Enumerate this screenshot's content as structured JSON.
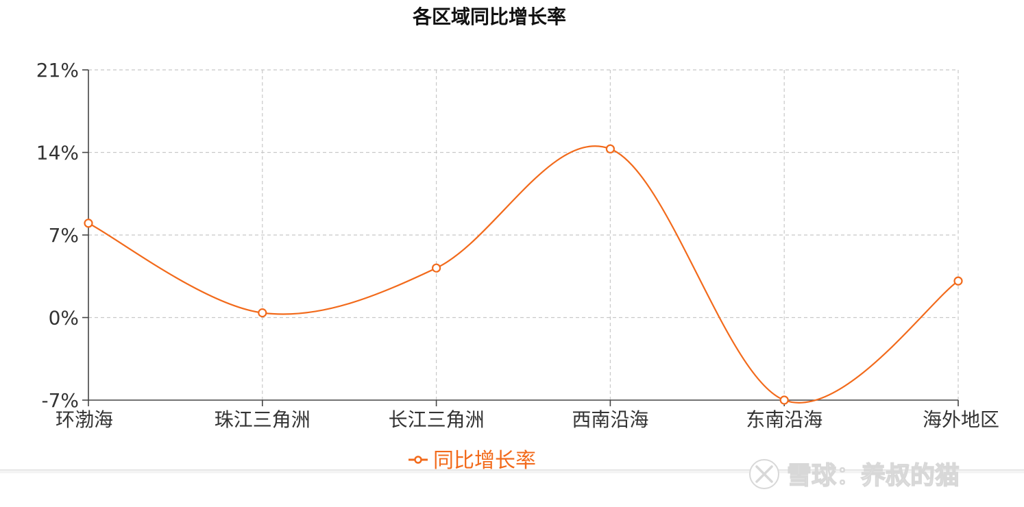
{
  "chart_data": {
    "type": "line",
    "title": "各区域同比增长率",
    "categories": [
      "环渤海",
      "珠江三角洲",
      "长江三角洲",
      "西南沿海",
      "东南沿海",
      "海外地区"
    ],
    "series": [
      {
        "name": "同比增长率",
        "values": [
          8.0,
          0.4,
          4.2,
          14.3,
          -7.0,
          3.1
        ],
        "color": "#f26a1b"
      }
    ],
    "y_ticks": [
      21,
      14,
      7,
      0,
      -7
    ],
    "y_tick_labels": [
      "21%",
      "14%",
      "7%",
      "0%",
      "-7%"
    ],
    "ylim": [
      -7,
      21
    ],
    "grid": true,
    "smooth": true,
    "legend_position": "bottom-center",
    "xlabel": "",
    "ylabel": ""
  },
  "watermark": {
    "text": "雪球：养叔的猫",
    "icon": "xueqiu-logo-icon"
  },
  "colors": {
    "line": "#f26a1b",
    "grid": "#c8c8c8",
    "axis": "#444444"
  }
}
